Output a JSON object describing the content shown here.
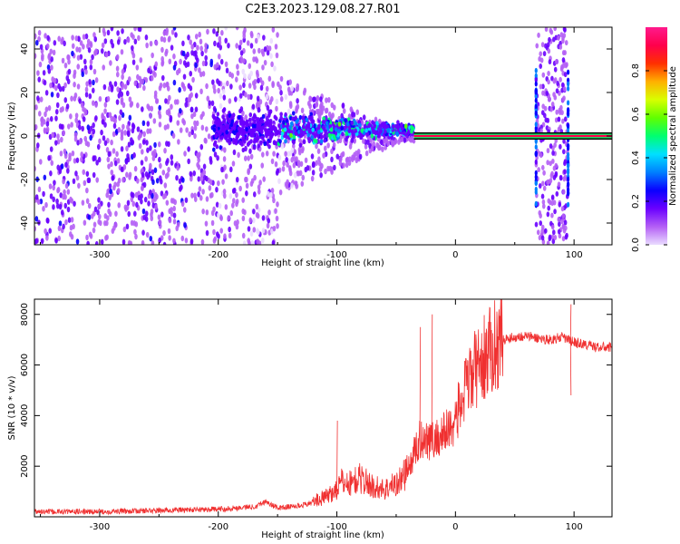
{
  "title": "C2E3.2023.129.08.27.R01",
  "chart_data": [
    {
      "type": "heatmap",
      "xlabel": "Height of straight line (km)",
      "ylabel": "Frequency (Hz)",
      "xlim": [
        -355,
        132
      ],
      "ylim": [
        -50,
        50
      ],
      "x_ticks": [
        "-300",
        "-200",
        "-100",
        "0",
        "100"
      ],
      "y_ticks": [
        "-40",
        "-20",
        "0",
        "20",
        "40"
      ],
      "grid": false,
      "colorbar": {
        "label": "Normalized spectral amplitude",
        "range": [
          0.0,
          1.0
        ],
        "ticks": [
          "0.0",
          "0.2",
          "0.4",
          "0.6",
          "0.8"
        ],
        "colors": [
          "#eadcff",
          "#b45ff5",
          "#6a00ff",
          "#0a00ff",
          "#0080ff",
          "#00e0ff",
          "#00ff70",
          "#60ff00",
          "#d8ff00",
          "#ffb000",
          "#ff3000",
          "#ff004c",
          "#ff1a8c"
        ]
      },
      "features": {
        "carrier_line": {
          "frequency_hz": 0,
          "x_from": -35,
          "x_to": 132
        },
        "spread_region": {
          "x_from": -355,
          "x_to": -35,
          "max_spread_hz": 50
        },
        "bright_burst": {
          "x_from": 68,
          "x_to": 95,
          "spread_hz": 50
        }
      }
    },
    {
      "type": "line",
      "xlabel": "Height of straight line (km)",
      "ylabel": "SNR (10 * v/v)",
      "xlim": [
        -355,
        132
      ],
      "ylim": [
        0,
        8600
      ],
      "x_ticks": [
        "-300",
        "-200",
        "-100",
        "0",
        "100"
      ],
      "y_ticks": [
        "2000",
        "4000",
        "6000",
        "8000"
      ],
      "grid": false,
      "line_color": "#f03030",
      "series": [
        {
          "x": [
            -355,
            -300,
            -250,
            -200,
            -170,
            -160,
            -150,
            -130,
            -110,
            -100,
            -95,
            -90,
            -80,
            -70,
            -60,
            -50,
            -45,
            -40,
            -35,
            -30,
            -25,
            -20,
            -15,
            -10,
            -5,
            0,
            5,
            10,
            15,
            20,
            25,
            30,
            35,
            40,
            50,
            60,
            70,
            80,
            85,
            90,
            95,
            100,
            110,
            120,
            132
          ],
          "y": [
            200,
            200,
            250,
            300,
            400,
            600,
            350,
            450,
            700,
            1000,
            1300,
            1200,
            1400,
            1100,
            1000,
            1200,
            1400,
            1800,
            2500,
            3000,
            3200,
            3000,
            3100,
            3300,
            3500,
            3900,
            4500,
            5200,
            5700,
            6000,
            6300,
            6600,
            6900,
            7000,
            7100,
            7150,
            7050,
            7000,
            7050,
            7100,
            7000,
            6900,
            6800,
            6700,
            6700
          ]
        }
      ],
      "spikes": [
        {
          "x": -100,
          "y": 3800
        },
        {
          "x": -30,
          "y": 7500
        },
        {
          "x": -20,
          "y": 8000
        },
        {
          "x": 97,
          "y": 8400
        },
        {
          "x": 97,
          "y": 4800
        }
      ]
    }
  ]
}
